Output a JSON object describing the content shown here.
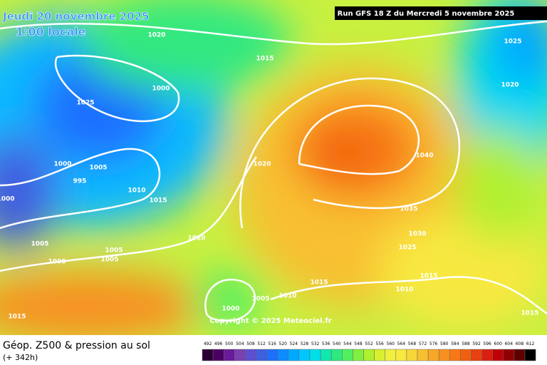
{
  "header": {
    "date": "Jeudi 20 novembre 2025",
    "time": "1:00 locale",
    "run": "Run GFS 18 Z du Mercredi 5 novembre 2025"
  },
  "isobar_labels": [
    "1020",
    "1015",
    "1000",
    "1025",
    "1025",
    "1020",
    "1000",
    "1005",
    "995",
    "1000",
    "1010",
    "1015",
    "1020",
    "1040",
    "1035",
    "1030",
    "1025",
    "1020",
    "1005",
    "1005",
    "1005",
    "1005",
    "1015",
    "1015",
    "1010",
    "1010",
    "1005",
    "1000",
    "1015",
    "1015"
  ],
  "copyright": "Copyright © 2025 Meteociel.fr",
  "footer": {
    "title": "Géop. Z500 & pression au sol",
    "lead": "(+ 342h)"
  },
  "legend": {
    "values": [
      492,
      496,
      500,
      504,
      508,
      512,
      516,
      520,
      524,
      528,
      532,
      536,
      540,
      544,
      548,
      552,
      556,
      560,
      564,
      568,
      572,
      576,
      580,
      584,
      588,
      592,
      596,
      600,
      604,
      608,
      612
    ],
    "colors": [
      "#2a0033",
      "#4b0063",
      "#6a1b9a",
      "#7b3fb0",
      "#5c4fd0",
      "#3f5fe0",
      "#1f6fff",
      "#0b8cff",
      "#00a8ff",
      "#00c8ff",
      "#00e0e8",
      "#10e8b0",
      "#30e880",
      "#50f060",
      "#80f040",
      "#b0f030",
      "#d8f030",
      "#f0f040",
      "#f8e840",
      "#f8d838",
      "#f8c030",
      "#f8a828",
      "#f89020",
      "#f87818",
      "#f06010",
      "#e84010",
      "#d82010",
      "#c00008",
      "#900000",
      "#600000",
      "#000000"
    ]
  }
}
